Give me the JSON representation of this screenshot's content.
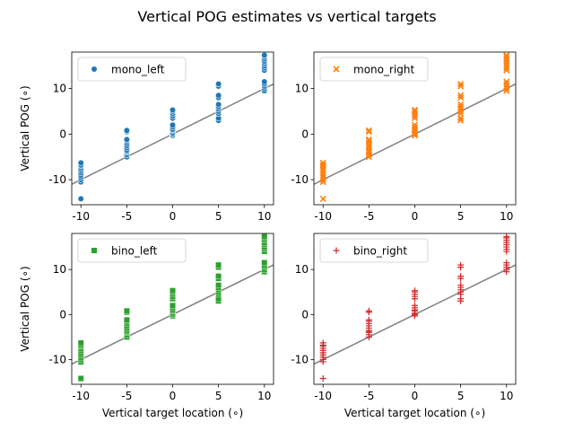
{
  "figure": {
    "title": "Vertical POG estimates vs vertical targets"
  },
  "chart_data": [
    {
      "type": "scatter",
      "panel": "top-left",
      "xlabel": "",
      "ylabel": "Vertical POG (∘)",
      "xlim": [
        -11,
        11
      ],
      "ylim": [
        -15.5,
        18
      ],
      "xticks": [
        -10,
        -5,
        0,
        5,
        10
      ],
      "yticks": [
        -10,
        0,
        10
      ],
      "grid": false,
      "legend": "top-left",
      "reference_line": {
        "x": [
          -11,
          11
        ],
        "y": [
          -11,
          11
        ],
        "color": "#808080"
      },
      "series": [
        {
          "name": "mono_left",
          "marker": "circle",
          "color": "#1f77b4",
          "x": [
            -10,
            -10,
            -10,
            -10,
            -10,
            -10,
            -10,
            -10,
            -10,
            -10,
            -10,
            -5,
            -5,
            -5,
            -5,
            -5,
            -5,
            -5,
            -5,
            -5,
            -5,
            -5,
            -5,
            0,
            0,
            0,
            0,
            0,
            0,
            0,
            0,
            0,
            0,
            0,
            0,
            5,
            5,
            5,
            5,
            5,
            5,
            5,
            5,
            5,
            5,
            5,
            10,
            10,
            10,
            10,
            10,
            10,
            10,
            10,
            10,
            10,
            10,
            10,
            10
          ],
          "y": [
            -14.2,
            -10.5,
            -10.0,
            -9.5,
            -9.0,
            -8.5,
            -8.0,
            -7.5,
            -7.0,
            -6.8,
            -6.3,
            -5.0,
            -4.5,
            -4.0,
            -3.8,
            -3.5,
            -3.0,
            -2.5,
            -2.0,
            -1.5,
            -1.2,
            0.5,
            0.8,
            -0.3,
            0.0,
            0.3,
            0.8,
            1.0,
            1.5,
            2.0,
            3.5,
            4.0,
            4.5,
            5.0,
            5.3,
            3.0,
            3.5,
            4.5,
            5.0,
            5.5,
            6.0,
            6.5,
            8.0,
            8.5,
            10.5,
            11.0,
            9.5,
            10.0,
            10.5,
            11.0,
            11.5,
            14.0,
            14.5,
            15.0,
            15.5,
            16.0,
            16.5,
            17.0,
            17.3
          ]
        }
      ]
    },
    {
      "type": "scatter",
      "panel": "top-right",
      "xlabel": "",
      "ylabel": "",
      "xlim": [
        -11,
        11
      ],
      "ylim": [
        -15.5,
        18
      ],
      "xticks": [
        -10,
        -5,
        0,
        5,
        10
      ],
      "yticks": [
        -10,
        0,
        10
      ],
      "grid": false,
      "legend": "top-left",
      "reference_line": {
        "x": [
          -11,
          11
        ],
        "y": [
          -11,
          11
        ],
        "color": "#808080"
      },
      "series": [
        {
          "name": "mono_right",
          "marker": "x",
          "color": "#ff7f0e",
          "x": [
            -10,
            -10,
            -10,
            -10,
            -10,
            -10,
            -10,
            -10,
            -10,
            -10,
            -10,
            -5,
            -5,
            -5,
            -5,
            -5,
            -5,
            -5,
            -5,
            -5,
            -5,
            -5,
            -5,
            0,
            0,
            0,
            0,
            0,
            0,
            0,
            0,
            0,
            0,
            0,
            0,
            5,
            5,
            5,
            5,
            5,
            5,
            5,
            5,
            5,
            5,
            5,
            10,
            10,
            10,
            10,
            10,
            10,
            10,
            10,
            10,
            10,
            10,
            10,
            10
          ],
          "y": [
            -14.2,
            -10.5,
            -10.0,
            -9.5,
            -9.0,
            -8.5,
            -8.0,
            -7.5,
            -7.0,
            -6.8,
            -6.3,
            -5.0,
            -4.5,
            -4.0,
            -3.8,
            -3.5,
            -3.0,
            -2.5,
            -2.0,
            -1.5,
            -1.2,
            0.5,
            0.8,
            -0.3,
            0.0,
            0.3,
            0.8,
            1.0,
            1.5,
            2.0,
            3.5,
            4.0,
            4.5,
            5.0,
            5.3,
            3.0,
            3.5,
            4.5,
            5.0,
            5.5,
            6.0,
            6.5,
            8.0,
            8.5,
            10.5,
            11.0,
            9.5,
            10.0,
            10.5,
            11.0,
            11.5,
            14.0,
            14.5,
            15.0,
            15.5,
            16.0,
            16.5,
            17.0,
            17.3
          ]
        }
      ]
    },
    {
      "type": "scatter",
      "panel": "bottom-left",
      "xlabel": "Vertical target location (∘)",
      "ylabel": "Vertical POG (∘)",
      "xlim": [
        -11,
        11
      ],
      "ylim": [
        -15.5,
        18
      ],
      "xticks": [
        -10,
        -5,
        0,
        5,
        10
      ],
      "yticks": [
        -10,
        0,
        10
      ],
      "grid": false,
      "legend": "top-left",
      "reference_line": {
        "x": [
          -11,
          11
        ],
        "y": [
          -11,
          11
        ],
        "color": "#808080"
      },
      "series": [
        {
          "name": "bino_left",
          "marker": "square",
          "color": "#2ca02c",
          "x": [
            -10,
            -10,
            -10,
            -10,
            -10,
            -10,
            -10,
            -10,
            -10,
            -10,
            -10,
            -5,
            -5,
            -5,
            -5,
            -5,
            -5,
            -5,
            -5,
            -5,
            -5,
            -5,
            -5,
            0,
            0,
            0,
            0,
            0,
            0,
            0,
            0,
            0,
            0,
            0,
            0,
            5,
            5,
            5,
            5,
            5,
            5,
            5,
            5,
            5,
            5,
            5,
            10,
            10,
            10,
            10,
            10,
            10,
            10,
            10,
            10,
            10,
            10,
            10,
            10
          ],
          "y": [
            -14.2,
            -10.5,
            -10.0,
            -9.5,
            -9.0,
            -8.5,
            -8.0,
            -7.5,
            -7.0,
            -6.8,
            -6.3,
            -5.0,
            -4.5,
            -4.0,
            -3.8,
            -3.5,
            -3.0,
            -2.5,
            -2.0,
            -1.5,
            -1.2,
            0.5,
            0.8,
            -0.3,
            0.0,
            0.3,
            0.8,
            1.0,
            1.5,
            2.0,
            3.5,
            4.0,
            4.5,
            5.0,
            5.3,
            3.0,
            3.5,
            4.5,
            5.0,
            5.5,
            6.0,
            6.5,
            8.0,
            8.5,
            10.5,
            11.0,
            9.5,
            10.0,
            10.5,
            11.0,
            11.5,
            14.0,
            14.5,
            15.0,
            15.5,
            16.0,
            16.5,
            17.0,
            17.3
          ]
        }
      ]
    },
    {
      "type": "scatter",
      "panel": "bottom-right",
      "xlabel": "Vertical target location (∘)",
      "ylabel": "",
      "xlim": [
        -11,
        11
      ],
      "ylim": [
        -15.5,
        18
      ],
      "xticks": [
        -10,
        -5,
        0,
        5,
        10
      ],
      "yticks": [
        -10,
        0,
        10
      ],
      "grid": false,
      "legend": "top-left",
      "reference_line": {
        "x": [
          -11,
          11
        ],
        "y": [
          -11,
          11
        ],
        "color": "#808080"
      },
      "series": [
        {
          "name": "bino_right",
          "marker": "plus",
          "color": "#d62728",
          "x": [
            -10,
            -10,
            -10,
            -10,
            -10,
            -10,
            -10,
            -10,
            -10,
            -10,
            -10,
            -5,
            -5,
            -5,
            -5,
            -5,
            -5,
            -5,
            -5,
            -5,
            -5,
            -5,
            -5,
            0,
            0,
            0,
            0,
            0,
            0,
            0,
            0,
            0,
            0,
            0,
            0,
            5,
            5,
            5,
            5,
            5,
            5,
            5,
            5,
            5,
            5,
            5,
            10,
            10,
            10,
            10,
            10,
            10,
            10,
            10,
            10,
            10,
            10,
            10,
            10
          ],
          "y": [
            -14.2,
            -10.5,
            -10.0,
            -9.5,
            -9.0,
            -8.5,
            -8.0,
            -7.5,
            -7.0,
            -6.8,
            -6.3,
            -5.0,
            -4.5,
            -4.0,
            -3.8,
            -3.5,
            -3.0,
            -2.5,
            -2.0,
            -1.5,
            -1.2,
            0.5,
            0.8,
            -0.3,
            0.0,
            0.3,
            0.8,
            1.0,
            1.5,
            2.0,
            3.5,
            4.0,
            4.5,
            5.0,
            5.3,
            3.0,
            3.5,
            4.5,
            5.0,
            5.5,
            6.0,
            6.5,
            8.0,
            8.5,
            10.5,
            11.0,
            9.5,
            10.0,
            10.5,
            11.0,
            11.5,
            14.0,
            14.5,
            15.0,
            15.5,
            16.0,
            16.5,
            17.0,
            17.3
          ]
        }
      ]
    }
  ]
}
